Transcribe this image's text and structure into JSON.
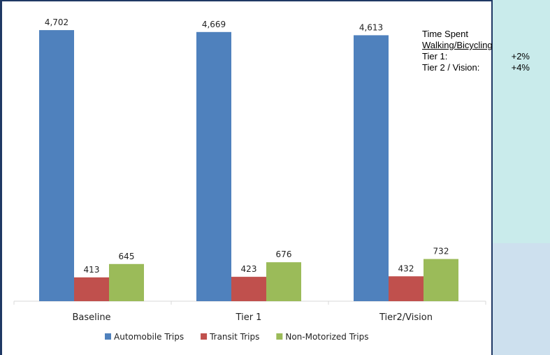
{
  "chart_data": {
    "type": "bar",
    "categories": [
      "Baseline",
      "Tier 1",
      "Tier2/Vision"
    ],
    "series": [
      {
        "name": "Automobile Trips",
        "values": [
          4702,
          4669,
          4613
        ],
        "labels": [
          "4,702",
          "4,669",
          "4,613"
        ],
        "color": "#4f81bd"
      },
      {
        "name": "Transit Trips",
        "values": [
          413,
          423,
          432
        ],
        "labels": [
          "413",
          "423",
          "432"
        ],
        "color": "#c0504d"
      },
      {
        "name": "Non-Motorized Trips",
        "values": [
          645,
          676,
          732
        ],
        "labels": [
          "645",
          "676",
          "732"
        ],
        "color": "#9bbb59"
      }
    ],
    "title": "",
    "xlabel": "",
    "ylabel": "",
    "ylim": [
      0,
      4800
    ],
    "grid": false,
    "legend": "bottom"
  },
  "callout": {
    "title_line1": "Time Spent",
    "title_line2": "Walking/Bicycling",
    "rows": [
      {
        "label": "Tier 1:",
        "value": "+2%"
      },
      {
        "label": "Tier 2 / Vision:",
        "value": "+4%"
      }
    ]
  },
  "colors": {
    "frame_border": "#1f3864",
    "panel_top": "#c9ebeb",
    "panel_bottom": "#cde0ee"
  }
}
